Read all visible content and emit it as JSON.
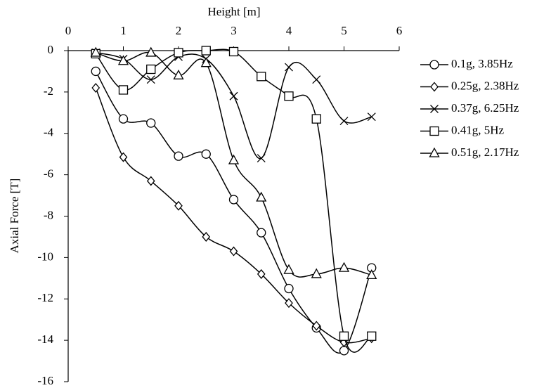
{
  "chart_data": {
    "type": "line",
    "xlabel": "Height [m]",
    "ylabel": "Axial Force [T]",
    "x": [
      0.5,
      1,
      1.5,
      2,
      2.5,
      3,
      3.5,
      4,
      4.5,
      5,
      5.5
    ],
    "xlim": [
      0,
      6
    ],
    "xticks": [
      0,
      1,
      2,
      3,
      4,
      5,
      6
    ],
    "ylim": [
      -16,
      0
    ],
    "yticks": [
      0,
      -2,
      -4,
      -6,
      -8,
      -10,
      -12,
      -14,
      -16
    ],
    "legend": "right",
    "series": [
      {
        "name": "0.1g, 3.85Hz",
        "marker": "circle",
        "color": "#000000",
        "values": [
          -1.0,
          -3.3,
          -3.5,
          -5.1,
          -5.0,
          -7.2,
          -8.8,
          -11.5,
          -13.4,
          -14.5,
          -10.5
        ]
      },
      {
        "name": "0.25g, 2.38Hz",
        "marker": "diamond",
        "color": "#000000",
        "values": [
          -1.8,
          -5.15,
          -6.3,
          -7.5,
          -9.0,
          -9.7,
          -10.8,
          -12.2,
          -13.3,
          -14.1,
          -13.9
        ]
      },
      {
        "name": "0.37g, 6.25Hz",
        "marker": "cross",
        "color": "#000000",
        "values": [
          -0.1,
          -0.4,
          -1.4,
          -0.3,
          -0.4,
          -2.2,
          -5.2,
          -0.8,
          -1.4,
          -3.4,
          -3.2
        ]
      },
      {
        "name": "0.41g, 5Hz",
        "marker": "square",
        "color": "#000000",
        "values": [
          -0.15,
          -1.9,
          -0.9,
          -0.1,
          0,
          -0.05,
          -1.25,
          -2.2,
          -3.3,
          -13.8,
          -13.8
        ]
      },
      {
        "name": "0.51g, 2.17Hz",
        "marker": "triangle",
        "color": "#000000",
        "values": [
          -0.1,
          -0.5,
          -0.1,
          -1.2,
          -0.6,
          -5.3,
          -7.1,
          -10.6,
          -10.8,
          -10.5,
          -10.85
        ]
      }
    ]
  }
}
